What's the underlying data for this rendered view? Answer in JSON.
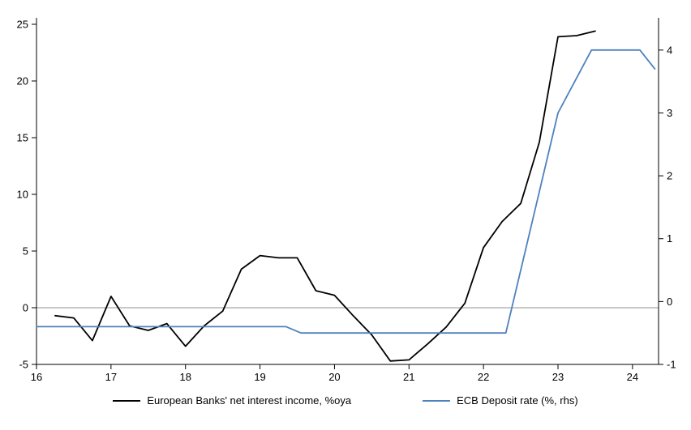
{
  "chart_data": {
    "type": "line",
    "title": "",
    "xlabel": "",
    "ylabel_left": "",
    "ylabel_right": "",
    "grid": "zero-line-only",
    "legend_position": "bottom",
    "x_range": [
      16,
      24.35
    ],
    "x_ticks": [
      16,
      17,
      18,
      19,
      20,
      21,
      22,
      23,
      24
    ],
    "left_axis": {
      "range": [
        -5,
        25
      ],
      "ticks": [
        -5,
        0,
        5,
        10,
        15,
        20,
        25
      ]
    },
    "right_axis": {
      "range": [
        -1,
        4.41
      ],
      "ticks": [
        -1,
        0,
        1,
        2,
        3,
        4
      ]
    },
    "colors": {
      "axis": "#000000",
      "zero_line": "#a6a6a6",
      "black_series": "#000000",
      "blue_series": "#4f81bd"
    },
    "series": [
      {
        "id": "european-banks-nii",
        "name": "European Banks' net interest income, %oya",
        "axis": "left",
        "color": "#000000",
        "points": [
          [
            16.25,
            -0.7
          ],
          [
            16.5,
            -0.9
          ],
          [
            16.75,
            -2.9
          ],
          [
            17.0,
            1.0
          ],
          [
            17.25,
            -1.6
          ],
          [
            17.5,
            -2.0
          ],
          [
            17.75,
            -1.4
          ],
          [
            18.0,
            -3.4
          ],
          [
            18.25,
            -1.6
          ],
          [
            18.5,
            -0.3
          ],
          [
            18.75,
            3.4
          ],
          [
            19.0,
            4.6
          ],
          [
            19.25,
            4.4
          ],
          [
            19.5,
            4.4
          ],
          [
            19.75,
            1.5
          ],
          [
            20.0,
            1.1
          ],
          [
            20.25,
            -0.7
          ],
          [
            20.5,
            -2.4
          ],
          [
            20.75,
            -4.7
          ],
          [
            21.0,
            -4.6
          ],
          [
            21.25,
            -3.2
          ],
          [
            21.5,
            -1.7
          ],
          [
            21.75,
            0.4
          ],
          [
            22.0,
            5.3
          ],
          [
            22.25,
            7.6
          ],
          [
            22.5,
            9.2
          ],
          [
            22.75,
            14.6
          ],
          [
            23.0,
            23.9
          ],
          [
            23.25,
            24.0
          ],
          [
            23.5,
            24.4
          ]
        ]
      },
      {
        "id": "ecb-deposit-rate",
        "name": "ECB Deposit rate (%, rhs)",
        "axis": "right",
        "color": "#4f81bd",
        "points": [
          [
            16.0,
            -0.4
          ],
          [
            19.35,
            -0.4
          ],
          [
            19.55,
            -0.5
          ],
          [
            22.3,
            -0.5
          ],
          [
            23.0,
            3.0
          ],
          [
            23.45,
            4.0
          ],
          [
            24.1,
            4.0
          ],
          [
            24.3,
            3.7
          ]
        ]
      }
    ],
    "legend": [
      "European Banks' net interest income, %oya",
      "ECB Deposit rate (%, rhs)"
    ]
  }
}
